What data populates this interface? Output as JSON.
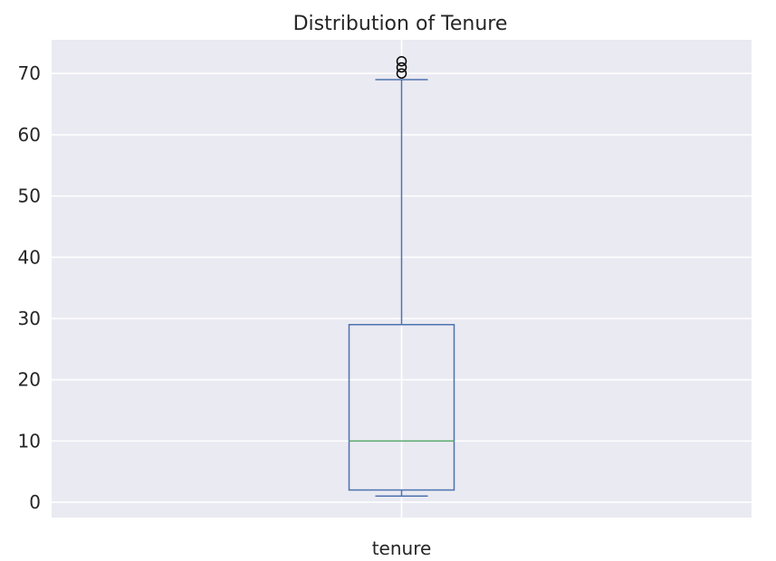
{
  "chart_data": {
    "type": "box",
    "title": "Distribution of Tenure",
    "xlabel": "",
    "ylabel": "",
    "categories": [
      "tenure"
    ],
    "boxes": [
      {
        "name": "tenure",
        "whisker_low": 1,
        "q1": 2,
        "median": 10,
        "q3": 29,
        "whisker_high": 69,
        "outliers": [
          70,
          71,
          72
        ]
      }
    ],
    "yticks": [
      0,
      10,
      20,
      30,
      40,
      50,
      60,
      70
    ],
    "ylim": [
      -2.5,
      75.5
    ],
    "grid": true,
    "colors": {
      "background": "#EAEAF2",
      "grid": "#FFFFFF",
      "box": "#4C72B0",
      "median": "#55A868",
      "text": "#262626"
    }
  }
}
